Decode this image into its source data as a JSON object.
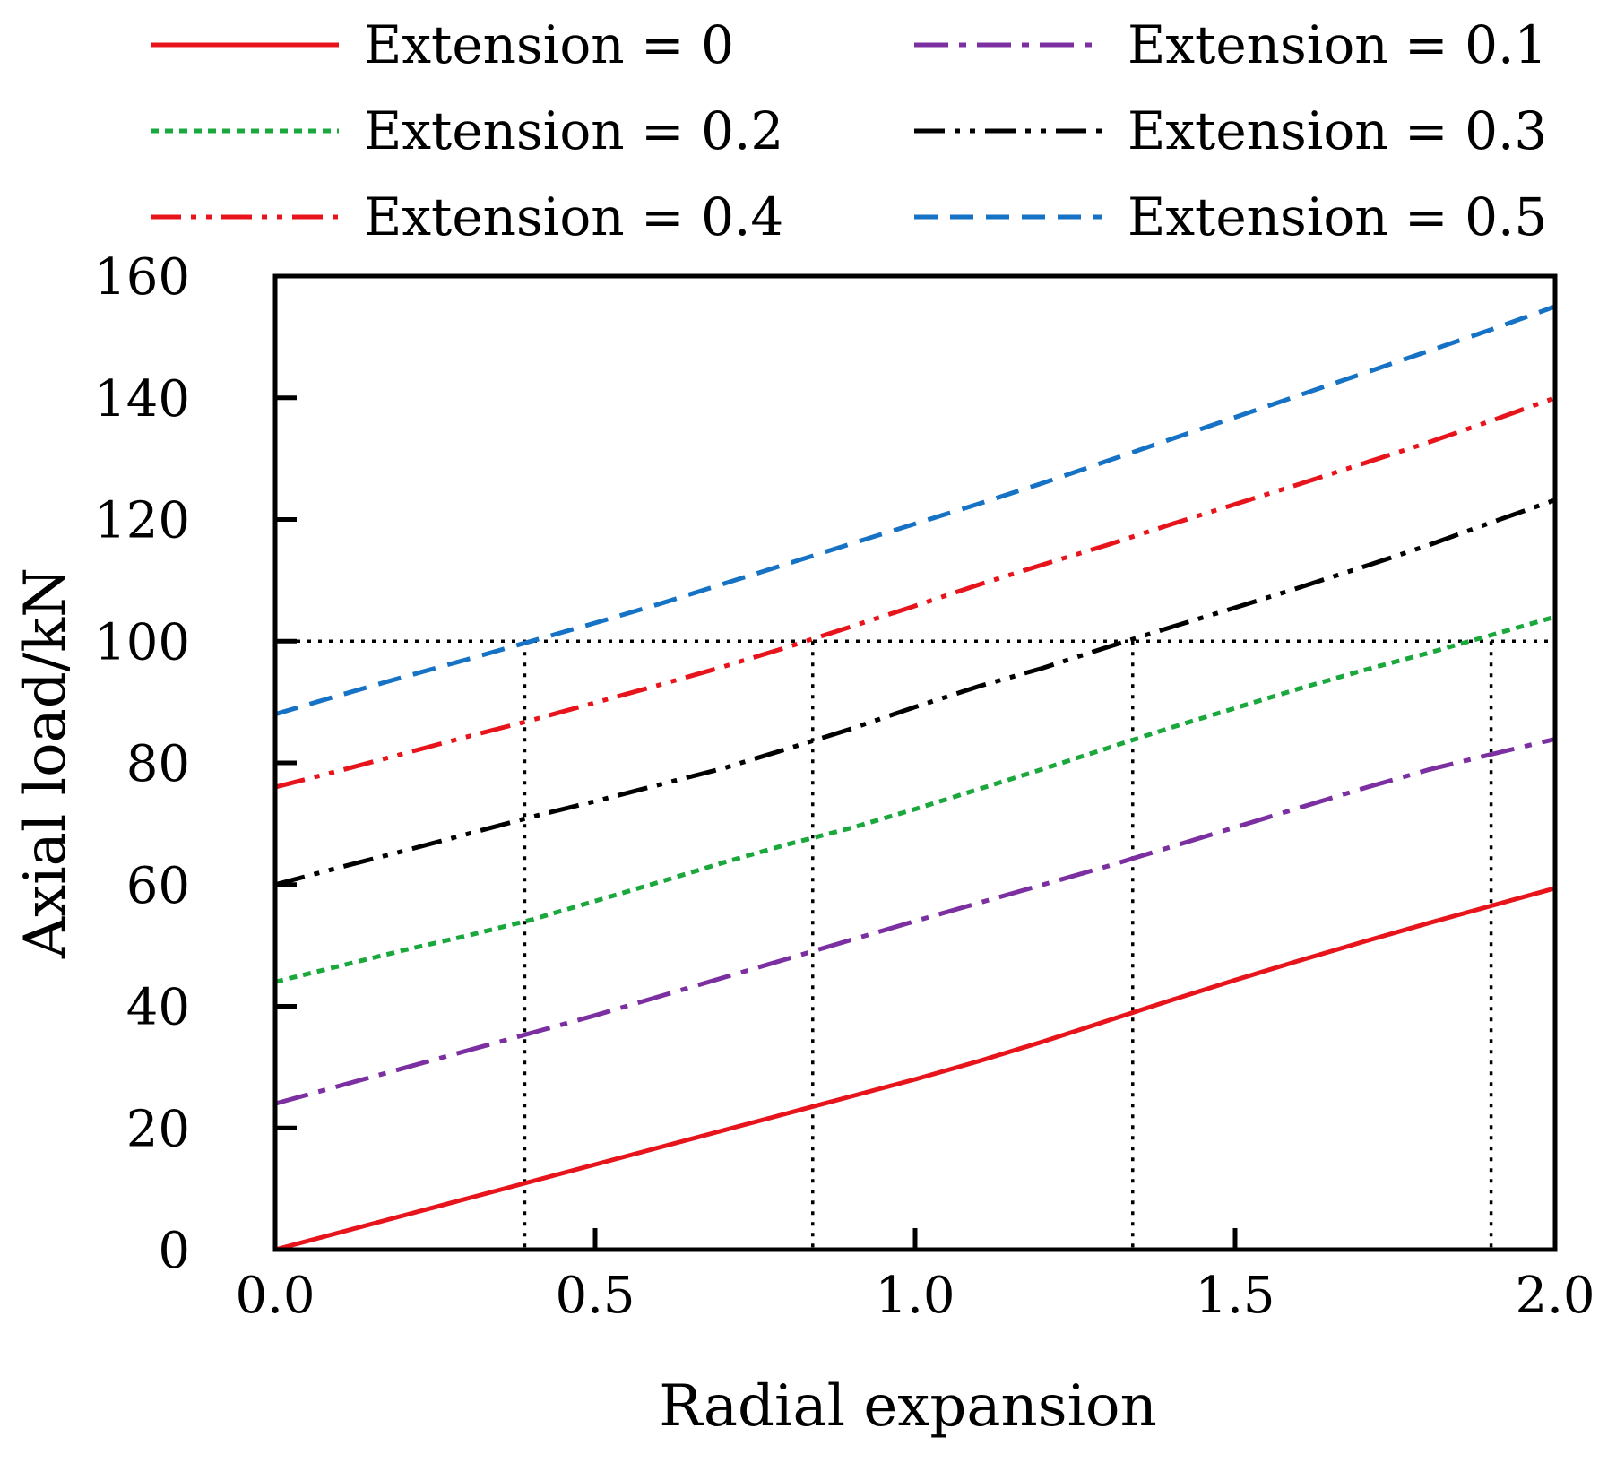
{
  "chart_data": {
    "type": "line",
    "title": "",
    "xlabel": "Radial expansion",
    "ylabel": "Axial load/kN",
    "xlim": [
      0,
      2
    ],
    "ylim": [
      0,
      160
    ],
    "xticks": [
      "0.0",
      "0.5",
      "1.0",
      "1.5",
      "2.0"
    ],
    "yticks": [
      "0",
      "20",
      "40",
      "60",
      "80",
      "100",
      "120",
      "140",
      "160"
    ],
    "grid": false,
    "legend_position": "top",
    "x": [
      0,
      0.1,
      0.2,
      0.3,
      0.4,
      0.5,
      0.6,
      0.7,
      0.8,
      0.9,
      1.0,
      1.1,
      1.2,
      1.3,
      1.4,
      1.5,
      1.6,
      1.7,
      1.8,
      1.9,
      2.0
    ],
    "series": [
      {
        "name": "Extension = 0",
        "color": "#e8141c",
        "dash": "solid",
        "values": [
          0,
          2.8,
          5.6,
          8.4,
          11.2,
          14.0,
          16.8,
          19.6,
          22.4,
          25.2,
          28.0,
          31.0,
          34.2,
          37.6,
          41.0,
          44.3,
          47.5,
          50.6,
          53.6,
          56.5,
          59.4
        ]
      },
      {
        "name": "Extension = 0.1",
        "color": "#7b2fa0",
        "dash": "dashdot",
        "values": [
          24,
          26.9,
          29.8,
          32.7,
          35.6,
          38.5,
          41.6,
          44.7,
          47.8,
          50.9,
          54.0,
          57.0,
          60.0,
          63.0,
          66.2,
          69.4,
          72.6,
          75.8,
          78.8,
          81.4,
          83.9
        ]
      },
      {
        "name": "Extension = 0.2",
        "color": "#1aa83c",
        "dash": "dotted",
        "values": [
          44,
          46.6,
          49.2,
          51.6,
          54.2,
          57.3,
          60.4,
          63.6,
          66.6,
          69.3,
          72.4,
          75.7,
          79.0,
          82.4,
          85.8,
          89.0,
          92.2,
          95.2,
          98.0,
          101.0,
          104.0
        ]
      },
      {
        "name": "Extension = 0.3",
        "color": "#000000",
        "dash": "dashdotdot",
        "values": [
          60,
          62.8,
          65.5,
          68.3,
          71.1,
          73.7,
          76.4,
          79.1,
          82.3,
          85.6,
          89.2,
          92.6,
          95.6,
          99.0,
          102.3,
          105.5,
          108.8,
          112.2,
          115.7,
          119.5,
          123.2
        ]
      },
      {
        "name": "Extension = 0.4",
        "color": "#e8141c",
        "dash": "dashdotdot",
        "values": [
          76,
          78.7,
          81.5,
          84.3,
          87.0,
          89.9,
          92.8,
          95.8,
          99.0,
          102.4,
          105.8,
          109.3,
          112.6,
          115.8,
          119.2,
          122.5,
          125.8,
          129.2,
          132.6,
          136.2,
          140.0
        ]
      },
      {
        "name": "Extension = 0.5",
        "color": "#1672c4",
        "dash": "dashed",
        "values": [
          88,
          91.1,
          94.1,
          97.0,
          100.0,
          103.0,
          106.1,
          109.4,
          112.7,
          116.0,
          119.3,
          122.6,
          126.0,
          129.6,
          133.2,
          136.8,
          140.4,
          144.0,
          147.6,
          151.2,
          155.0
        ]
      }
    ],
    "reference_lines": {
      "horizontal_y": 100,
      "vertical_x": [
        0.39,
        0.84,
        1.34,
        1.9
      ]
    }
  }
}
